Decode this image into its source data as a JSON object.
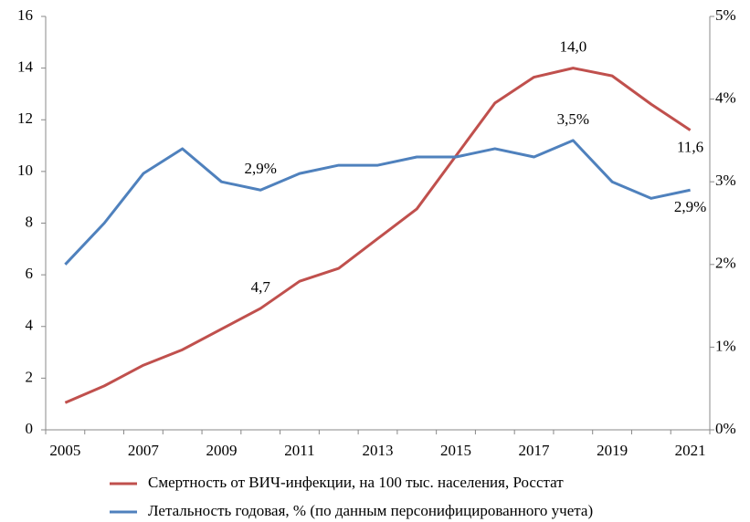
{
  "chart_data": {
    "type": "line",
    "categories": [
      "2005",
      null,
      "2007",
      null,
      "2009",
      null,
      "2011",
      null,
      "2013",
      null,
      "2015",
      null,
      "2017",
      null,
      "2019",
      null,
      "2021"
    ],
    "series": [
      {
        "name": "Смертность от ВИЧ-инфекции, на 100 тыс. населения, Росстат",
        "color": "#c0504d",
        "axis": "y",
        "values": [
          1.05,
          1.7,
          2.5,
          3.1,
          3.9,
          4.7,
          5.75,
          6.25,
          7.4,
          8.55,
          10.6,
          12.65,
          13.65,
          14.0,
          13.7,
          12.6,
          11.6
        ],
        "value_labels": [
          null,
          null,
          null,
          null,
          null,
          "4,7",
          null,
          null,
          null,
          null,
          null,
          null,
          null,
          "14,0",
          null,
          null,
          "11,6"
        ]
      },
      {
        "name": "Летальность годовая, % (по данным персонифицированного учета)",
        "color": "#4f81bd",
        "axis": "y2",
        "values": [
          2.0,
          2.5,
          3.1,
          3.4,
          3.0,
          2.9,
          3.1,
          3.2,
          3.2,
          3.3,
          3.3,
          3.4,
          3.3,
          3.5,
          3.0,
          2.8,
          2.9
        ],
        "value_labels": [
          null,
          null,
          null,
          null,
          null,
          "2,9%",
          null,
          null,
          null,
          null,
          null,
          null,
          null,
          "3,5%",
          null,
          null,
          "2,9%"
        ]
      }
    ],
    "ylim": [
      0,
      16
    ],
    "yticks": [
      0,
      2,
      4,
      6,
      8,
      10,
      12,
      14,
      16
    ],
    "y2lim": [
      0,
      5
    ],
    "y2ticks": [
      {
        "value": 0,
        "label": "0%"
      },
      {
        "value": 1,
        "label": "1%"
      },
      {
        "value": 2,
        "label": "2%"
      },
      {
        "value": 3,
        "label": "3%"
      },
      {
        "value": 4,
        "label": "4%"
      },
      {
        "value": 5,
        "label": "5%"
      }
    ],
    "legend": "bottom"
  }
}
